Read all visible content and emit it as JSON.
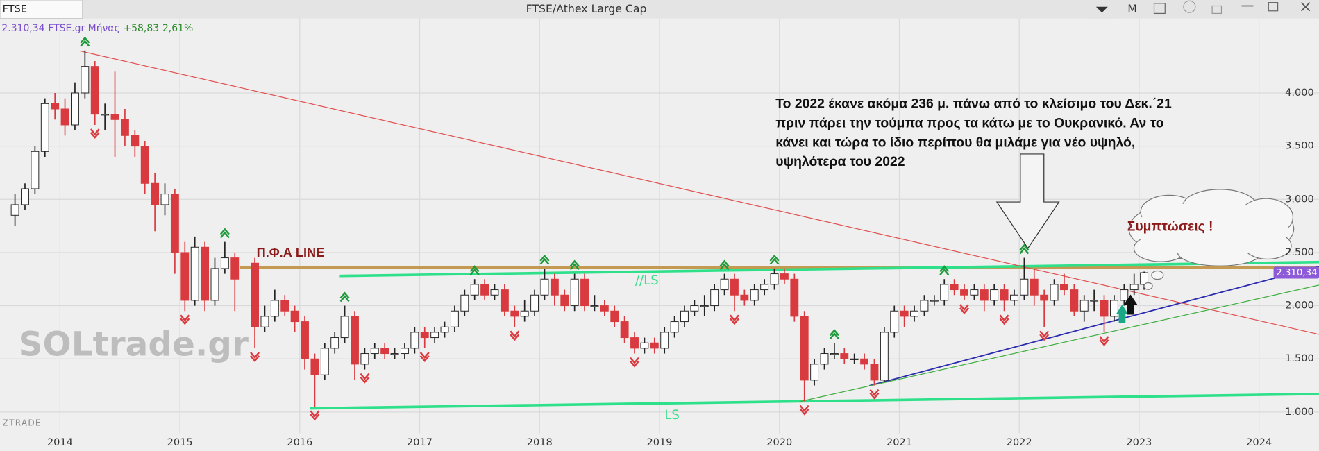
{
  "toolbar": {
    "symbol": "FTSE",
    "period": "M"
  },
  "info": {
    "price": "2.310,34",
    "symbol": "FTSE.gr Μήνας",
    "change": "+58,83",
    "change_pct": "2,61%"
  },
  "footer": "ZTRADE",
  "watermark": "SOLtrade.gr",
  "labels": {
    "pfa": "Π.Φ.Α LINE",
    "ls_upper": "//LS",
    "ls_lower": "LS",
    "cloud": "Συμπτώσεις !"
  },
  "annotation": [
    "Το 2022 έκανε ακόμα 236 μ. πάνω από το κλείσιμο του Δεκ.΄21",
    "πριν πάρει την τούμπα προς τα κάτω με το Ουκρανικό. Αν το",
    "κάνει και τώρα το ίδιο περίπου θα μιλάμε για νέο υψηλό,",
    "υψηλότερα του 2022"
  ],
  "chart_data": {
    "type": "candlestick",
    "title": "FTSE/Athex Large Cap",
    "x": [
      "2013-08",
      "2013-09",
      "2013-10",
      "2013-11",
      "2013-12",
      "2014-01",
      "2014-02",
      "2014-03",
      "2014-04",
      "2014-05",
      "2014-06",
      "2014-07",
      "2014-08",
      "2014-09",
      "2014-10",
      "2014-11",
      "2014-12",
      "2015-01",
      "2015-02",
      "2015-03",
      "2015-04",
      "2015-05",
      "2015-06",
      "2015-08",
      "2015-09",
      "2015-10",
      "2015-11",
      "2015-12",
      "2016-01",
      "2016-02",
      "2016-03",
      "2016-04",
      "2016-05",
      "2016-06",
      "2016-07",
      "2016-08",
      "2016-09",
      "2016-10",
      "2016-11",
      "2016-12",
      "2017-01",
      "2017-02",
      "2017-03",
      "2017-04",
      "2017-05",
      "2017-06",
      "2017-07",
      "2017-08",
      "2017-09",
      "2017-10",
      "2017-11",
      "2017-12",
      "2018-01",
      "2018-02",
      "2018-03",
      "2018-04",
      "2018-05",
      "2018-06",
      "2018-07",
      "2018-08",
      "2018-09",
      "2018-10",
      "2018-11",
      "2018-12",
      "2019-01",
      "2019-02",
      "2019-03",
      "2019-04",
      "2019-05",
      "2019-06",
      "2019-07",
      "2019-08",
      "2019-09",
      "2019-10",
      "2019-11",
      "2019-12",
      "2020-01",
      "2020-02",
      "2020-03",
      "2020-04",
      "2020-05",
      "2020-06",
      "2020-07",
      "2020-08",
      "2020-09",
      "2020-10",
      "2020-11",
      "2020-12",
      "2021-01",
      "2021-02",
      "2021-03",
      "2021-04",
      "2021-05",
      "2021-06",
      "2021-07",
      "2021-08",
      "2021-09",
      "2021-10",
      "2021-11",
      "2021-12",
      "2022-01",
      "2022-02",
      "2022-03",
      "2022-04",
      "2022-05",
      "2022-06",
      "2022-07",
      "2022-08",
      "2022-09",
      "2022-10",
      "2022-11",
      "2022-12",
      "2023-01"
    ],
    "open": [
      2850,
      2950,
      3100,
      3450,
      3900,
      3850,
      3700,
      4000,
      4250,
      3800,
      3800,
      3750,
      3600,
      3500,
      3150,
      2950,
      3050,
      2500,
      2050,
      2550,
      2050,
      2350,
      2450,
      2400,
      1800,
      1900,
      2050,
      1950,
      1850,
      1500,
      1350,
      1600,
      1700,
      1900,
      1450,
      1550,
      1600,
      1550,
      1550,
      1600,
      1750,
      1700,
      1750,
      1800,
      1950,
      2100,
      2200,
      2100,
      2150,
      1950,
      1900,
      1950,
      2100,
      2250,
      2100,
      2000,
      2250,
      2000,
      2000,
      1950,
      1850,
      1700,
      1600,
      1650,
      1600,
      1750,
      1850,
      1950,
      2000,
      2000,
      2150,
      2250,
      2100,
      2050,
      2150,
      2200,
      2300,
      2250,
      1900,
      1300,
      1450,
      1550,
      1550,
      1500,
      1500,
      1450,
      1300,
      1750,
      1950,
      1900,
      1950,
      2050,
      2050,
      2200,
      2150,
      2100,
      2150,
      2050,
      2150,
      2050,
      2100,
      2250,
      2100,
      2050,
      2200,
      2150,
      1950,
      2050,
      2050,
      1900,
      2050,
      2150,
      2200
    ],
    "high": [
      3050,
      3150,
      3500,
      3950,
      4000,
      3950,
      4100,
      4400,
      4300,
      3900,
      4200,
      3850,
      3650,
      3550,
      3250,
      3150,
      3100,
      2600,
      2650,
      2600,
      2450,
      2600,
      2500,
      2450,
      2000,
      2150,
      2100,
      2000,
      1900,
      1550,
      1650,
      1750,
      2000,
      1950,
      1600,
      1650,
      1650,
      1600,
      1650,
      1800,
      1800,
      1800,
      1850,
      2000,
      2150,
      2250,
      2250,
      2200,
      2200,
      2000,
      2050,
      2150,
      2350,
      2300,
      2150,
      2300,
      2300,
      2100,
      2050,
      2000,
      1900,
      1750,
      1700,
      1700,
      1800,
      1900,
      2000,
      2050,
      2100,
      2200,
      2300,
      2300,
      2150,
      2200,
      2250,
      2350,
      2350,
      2300,
      1950,
      1500,
      1600,
      1650,
      1600,
      1550,
      1550,
      1500,
      1800,
      2000,
      2000,
      2000,
      2100,
      2100,
      2250,
      2250,
      2200,
      2200,
      2200,
      2200,
      2200,
      2150,
      2450,
      2350,
      2150,
      2250,
      2300,
      2200,
      2100,
      2150,
      2100,
      2100,
      2200,
      2300,
      2320
    ],
    "low": [
      2750,
      2900,
      3050,
      3400,
      3750,
      3600,
      3650,
      3950,
      3700,
      3650,
      3400,
      3500,
      3400,
      3050,
      2700,
      2850,
      2300,
      1950,
      2000,
      1950,
      2000,
      2300,
      1950,
      1600,
      1750,
      1850,
      1900,
      1750,
      1400,
      1050,
      1300,
      1550,
      1650,
      1300,
      1400,
      1500,
      1500,
      1500,
      1500,
      1550,
      1600,
      1650,
      1700,
      1750,
      1900,
      2050,
      2050,
      2050,
      1900,
      1800,
      1850,
      1900,
      2050,
      2000,
      1950,
      1950,
      1950,
      1950,
      1900,
      1800,
      1650,
      1550,
      1550,
      1550,
      1550,
      1700,
      1800,
      1900,
      1900,
      1950,
      2100,
      1950,
      2000,
      2000,
      2100,
      2150,
      2200,
      1850,
      1100,
      1250,
      1400,
      1500,
      1450,
      1450,
      1400,
      1250,
      1280,
      1700,
      1800,
      1850,
      1900,
      2000,
      2000,
      2100,
      2050,
      2050,
      1950,
      2000,
      1950,
      2000,
      2050,
      2000,
      1800,
      2000,
      2100,
      1900,
      1850,
      1950,
      1750,
      1850,
      2000,
      2100,
      2150
    ],
    "close": [
      2950,
      3100,
      3450,
      3900,
      3850,
      3700,
      4000,
      4250,
      3800,
      3800,
      3750,
      3600,
      3500,
      3150,
      2950,
      3050,
      2500,
      2050,
      2550,
      2050,
      2350,
      2450,
      2250,
      1800,
      1900,
      2050,
      1950,
      1850,
      1500,
      1350,
      1600,
      1700,
      1900,
      1450,
      1550,
      1600,
      1550,
      1550,
      1600,
      1750,
      1700,
      1750,
      1800,
      1950,
      2100,
      2200,
      2100,
      2150,
      1950,
      1900,
      1950,
      2100,
      2250,
      2100,
      2000,
      2250,
      2000,
      2000,
      1950,
      1850,
      1700,
      1600,
      1650,
      1600,
      1750,
      1850,
      1950,
      2000,
      2000,
      2150,
      2250,
      2100,
      2050,
      2150,
      2200,
      2300,
      2250,
      1900,
      1300,
      1450,
      1550,
      1550,
      1500,
      1500,
      1450,
      1300,
      1750,
      1950,
      1900,
      1950,
      2050,
      2050,
      2200,
      2150,
      2100,
      2150,
      2050,
      2150,
      2050,
      2100,
      2250,
      2100,
      2050,
      2200,
      2150,
      1950,
      2050,
      2050,
      1900,
      2050,
      2150,
      2200,
      2310.34
    ],
    "up_color": "#ffffff",
    "down_color": "#d93a3f",
    "xlim": [
      "2013-07",
      "2024-07"
    ],
    "xticks": [
      "2014",
      "2015",
      "2016",
      "2017",
      "2018",
      "2019",
      "2020",
      "2021",
      "2022",
      "2023",
      "2024"
    ],
    "ylim": [
      800,
      4700
    ],
    "yticks": [
      {
        "value": 1000,
        "label": "1.000"
      },
      {
        "value": 1500,
        "label": "1.500"
      },
      {
        "value": 2000,
        "label": "2.000"
      },
      {
        "value": 2500,
        "label": "2.500"
      },
      {
        "value": 3000,
        "label": "3.000"
      },
      {
        "value": 3500,
        "label": "3.500"
      },
      {
        "value": 4000,
        "label": "4.000"
      }
    ],
    "grid": true,
    "up_signals": [
      "2014-03",
      "2015-05",
      "2016-05",
      "2017-06",
      "2018-01",
      "2018-04",
      "2019-07",
      "2019-12",
      "2020-06",
      "2021-05",
      "2022-01"
    ],
    "down_signals": [
      "2014-04",
      "2015-01",
      "2015-08",
      "2016-02",
      "2016-07",
      "2017-01",
      "2017-10",
      "2018-10",
      "2019-08",
      "2020-03",
      "2020-10",
      "2021-07",
      "2021-11",
      "2022-03",
      "2022-09"
    ],
    "trendlines": [
      {
        "color": "#c49a52",
        "width": 3,
        "points": [
          [
            "2015-07",
            2360
          ],
          [
            "2024-07",
            2360
          ]
        ]
      },
      {
        "color": "#2ee08a",
        "width": 3,
        "points": [
          [
            "2016-05",
            2280
          ],
          [
            "2024-07",
            2410
          ]
        ]
      },
      {
        "color": "#2ee08a",
        "width": 3,
        "points": [
          [
            "2016-02",
            1035
          ],
          [
            "2024-07",
            1170
          ]
        ]
      },
      {
        "color": "#e05050",
        "width": 1,
        "points": [
          [
            "2014-03",
            4395
          ],
          [
            "2024-07",
            1730
          ]
        ]
      },
      {
        "color": "#2b2bb0",
        "width": 1.5,
        "points": [
          [
            "2020-10",
            1248
          ],
          [
            "2024-07",
            2370
          ]
        ]
      },
      {
        "color": "#3fae3f",
        "width": 1,
        "points": [
          [
            "2020-03",
            1098
          ],
          [
            "2024-07",
            2194
          ]
        ]
      }
    ]
  }
}
